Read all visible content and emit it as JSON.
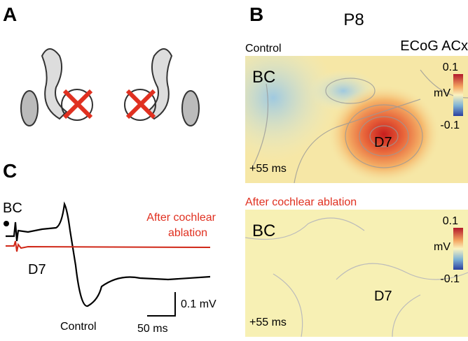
{
  "panels": {
    "a": {
      "label": "A"
    },
    "b": {
      "label": "B",
      "title": "P8",
      "subtitle": "ECoG ACx",
      "maps": [
        {
          "heading": "Control",
          "whisker_1": "BC",
          "whisker_2": "D7",
          "time": "+55 ms",
          "colorbar": {
            "max": "0.1",
            "unit": "mV",
            "min": "-0.1"
          }
        },
        {
          "heading": "After cochlear ablation",
          "whisker_1": "BC",
          "whisker_2": "D7",
          "time": "+55 ms",
          "colorbar": {
            "max": "0.1",
            "unit": "mV",
            "min": "-0.1"
          }
        }
      ]
    },
    "c": {
      "label": "C",
      "stimulus": "BC",
      "response": "D7",
      "ablation_label": [
        "After cochlear",
        "ablation"
      ],
      "control_label": "Control",
      "scale_y": "0.1 mV",
      "scale_x": "50 ms"
    }
  }
}
